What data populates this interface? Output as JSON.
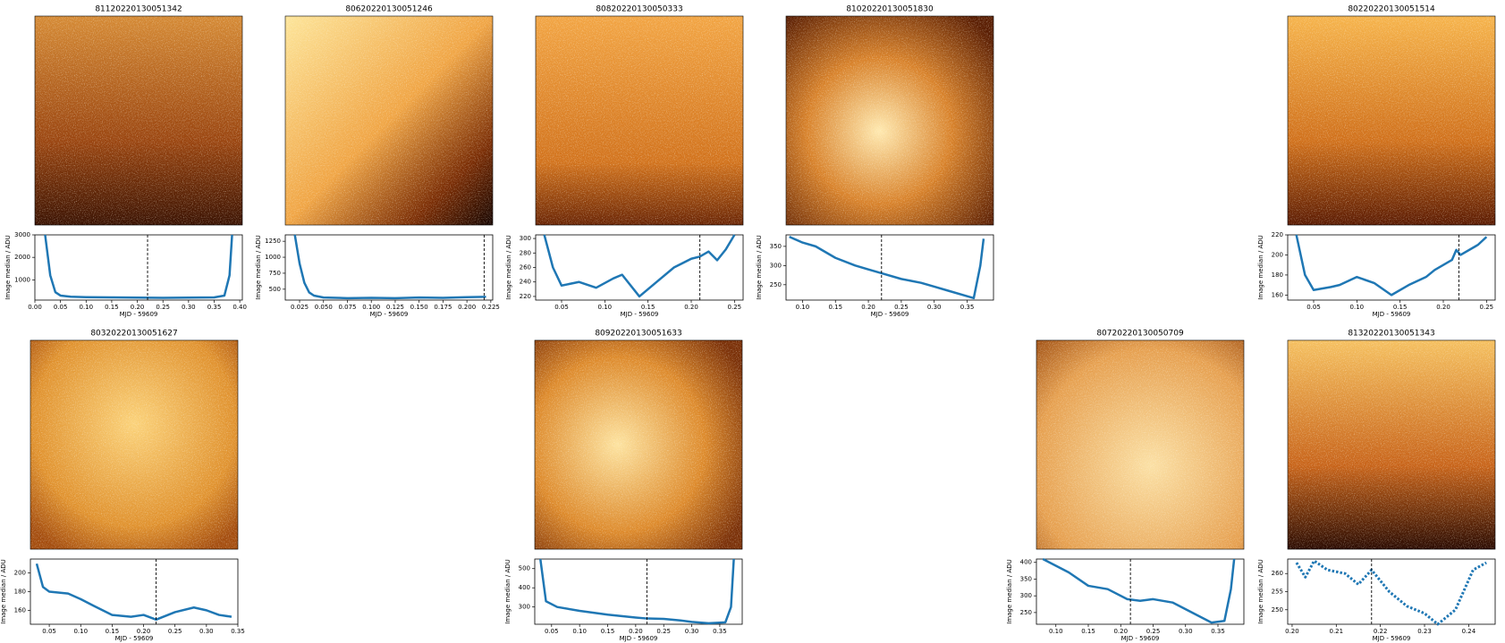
{
  "chart_data": [
    {
      "type": "line",
      "title": "81120220130051342",
      "xlabel": "MJD - 59609",
      "ylabel": "Image median / ADU",
      "color": "#1f77b4",
      "linestyle": "solid",
      "vline": 0.22,
      "x": [
        0.02,
        0.03,
        0.04,
        0.05,
        0.07,
        0.1,
        0.15,
        0.2,
        0.25,
        0.3,
        0.35,
        0.37,
        0.38,
        0.385
      ],
      "values": [
        3000,
        1200,
        450,
        300,
        250,
        230,
        220,
        210,
        200,
        210,
        220,
        300,
        1200,
        3000
      ],
      "xlim": [
        0.0,
        0.405
      ],
      "ylim": [
        100,
        3000
      ],
      "xticks": [
        {
          "value": 0,
          "label": "0.00"
        },
        0.05,
        {
          "value": 0.1,
          "label": "0.10"
        },
        0.15,
        {
          "value": 0.2,
          "label": "0.20"
        },
        0.25,
        {
          "value": 0.3,
          "label": "0.30"
        },
        0.35,
        {
          "value": 0.4,
          "label": "0.40"
        }
      ],
      "yticks": [
        1000,
        2000,
        3000
      ]
    },
    {
      "type": "line",
      "title": "80620220130051246",
      "xlabel": "MJD - 59609",
      "ylabel": "Image median / ADU",
      "color": "#1f77b4",
      "linestyle": "solid",
      "vline": 0.218,
      "x": [
        0.02,
        0.025,
        0.03,
        0.035,
        0.04,
        0.05,
        0.075,
        0.1,
        0.125,
        0.15,
        0.175,
        0.2,
        0.22
      ],
      "values": [
        1350,
        900,
        600,
        450,
        400,
        370,
        360,
        365,
        360,
        370,
        365,
        375,
        380
      ],
      "xlim": [
        0.01,
        0.227
      ],
      "ylim": [
        330,
        1350
      ],
      "xticks": [
        0.025,
        {
          "value": 0.05,
          "label": "0.050"
        },
        0.075,
        {
          "value": 0.1,
          "label": "0.100"
        },
        0.125,
        {
          "value": 0.15,
          "label": "0.150"
        },
        0.175,
        {
          "value": 0.2,
          "label": "0.200"
        },
        0.225
      ],
      "yticks": [
        500,
        750,
        1000,
        1250
      ]
    },
    {
      "type": "line",
      "title": "80820220130050333",
      "xlabel": "MJD - 59609",
      "ylabel": "Image median / ADU",
      "color": "#1f77b4",
      "linestyle": "solid",
      "vline": 0.21,
      "x": [
        0.03,
        0.04,
        0.05,
        0.07,
        0.09,
        0.11,
        0.12,
        0.14,
        0.16,
        0.18,
        0.2,
        0.21,
        0.22,
        0.23,
        0.24,
        0.25
      ],
      "values": [
        305,
        260,
        235,
        240,
        232,
        245,
        250,
        220,
        240,
        260,
        272,
        275,
        282,
        270,
        285,
        305
      ],
      "xlim": [
        0.02,
        0.26
      ],
      "ylim": [
        215,
        305
      ],
      "xticks": [
        0.05,
        {
          "value": 0.1,
          "label": "0.10"
        },
        0.15,
        {
          "value": 0.2,
          "label": "0.20"
        },
        0.25
      ],
      "yticks": [
        220,
        240,
        260,
        280,
        300
      ]
    },
    {
      "type": "line",
      "title": "81020220130051830",
      "xlabel": "MJD - 59609",
      "ylabel": "Image median / ADU",
      "color": "#1f77b4",
      "linestyle": "solid",
      "vline": 0.22,
      "x": [
        0.08,
        0.1,
        0.12,
        0.15,
        0.18,
        0.2,
        0.22,
        0.25,
        0.28,
        0.3,
        0.32,
        0.35,
        0.36,
        0.37,
        0.375
      ],
      "values": [
        375,
        360,
        350,
        320,
        300,
        290,
        280,
        265,
        255,
        245,
        235,
        220,
        215,
        300,
        370
      ],
      "xlim": [
        0.075,
        0.39
      ],
      "ylim": [
        210,
        380
      ],
      "xticks": [
        {
          "value": 0.1,
          "label": "0.10"
        },
        0.15,
        {
          "value": 0.2,
          "label": "0.20"
        },
        0.25,
        {
          "value": 0.3,
          "label": "0.30"
        },
        0.35
      ],
      "yticks": [
        250,
        300,
        350
      ]
    },
    {
      "type": "line",
      "title": "80220220130051514",
      "xlabel": "MJD - 59609",
      "ylabel": "Image median / ADU",
      "color": "#1f77b4",
      "linestyle": "solid",
      "vline": 0.218,
      "x": [
        0.03,
        0.04,
        0.05,
        0.07,
        0.08,
        0.1,
        0.12,
        0.14,
        0.16,
        0.18,
        0.19,
        0.21,
        0.215,
        0.22,
        0.24,
        0.25
      ],
      "values": [
        220,
        180,
        165,
        168,
        170,
        178,
        172,
        160,
        170,
        178,
        185,
        195,
        205,
        200,
        210,
        218
      ],
      "xlim": [
        0.02,
        0.26
      ],
      "ylim": [
        155,
        220
      ],
      "xticks": [
        0.05,
        {
          "value": 0.1,
          "label": "0.10"
        },
        0.15,
        {
          "value": 0.2,
          "label": "0.20"
        },
        0.25
      ],
      "yticks": [
        160,
        180,
        200,
        220
      ]
    },
    {
      "type": "line",
      "title": "80320220130051627",
      "xlabel": "MJD - 59609",
      "ylabel": "Image median / ADU",
      "color": "#1f77b4",
      "linestyle": "solid",
      "vline": 0.22,
      "x": [
        0.03,
        0.04,
        0.05,
        0.08,
        0.1,
        0.12,
        0.15,
        0.18,
        0.2,
        0.22,
        0.25,
        0.28,
        0.3,
        0.32,
        0.34
      ],
      "values": [
        210,
        185,
        180,
        178,
        172,
        165,
        155,
        153,
        155,
        150,
        158,
        163,
        160,
        155,
        153
      ],
      "xlim": [
        0.02,
        0.35
      ],
      "ylim": [
        145,
        215
      ],
      "xticks": [
        0.05,
        {
          "value": 0.1,
          "label": "0.10"
        },
        0.15,
        {
          "value": 0.2,
          "label": "0.20"
        },
        0.25,
        {
          "value": 0.3,
          "label": "0.30"
        },
        0.35
      ],
      "yticks": [
        160,
        180,
        200
      ]
    },
    {
      "type": "line",
      "title": "80920220130051633",
      "xlabel": "MJD - 59609",
      "ylabel": "Image median / ADU",
      "color": "#1f77b4",
      "linestyle": "solid",
      "vline": 0.22,
      "x": [
        0.03,
        0.04,
        0.06,
        0.1,
        0.15,
        0.2,
        0.22,
        0.25,
        0.28,
        0.3,
        0.33,
        0.36,
        0.37,
        0.375
      ],
      "values": [
        550,
        330,
        300,
        280,
        260,
        245,
        240,
        238,
        230,
        222,
        215,
        220,
        300,
        550
      ],
      "xlim": [
        0.02,
        0.39
      ],
      "ylim": [
        210,
        550
      ],
      "xticks": [
        0.05,
        {
          "value": 0.1,
          "label": "0.10"
        },
        0.15,
        {
          "value": 0.2,
          "label": "0.20"
        },
        0.25,
        {
          "value": 0.3,
          "label": "0.30"
        },
        0.35
      ],
      "yticks": [
        300,
        400,
        500
      ]
    },
    {
      "type": "line",
      "title": "80720220130050709",
      "xlabel": "MJD - 59609",
      "ylabel": "Image median / ADU",
      "color": "#1f77b4",
      "linestyle": "solid",
      "vline": 0.215,
      "x": [
        0.08,
        0.1,
        0.12,
        0.15,
        0.18,
        0.21,
        0.23,
        0.25,
        0.28,
        0.31,
        0.34,
        0.36,
        0.37,
        0.375
      ],
      "values": [
        410,
        390,
        370,
        330,
        320,
        290,
        285,
        290,
        280,
        250,
        220,
        225,
        320,
        410
      ],
      "xlim": [
        0.07,
        0.39
      ],
      "ylim": [
        215,
        410
      ],
      "xticks": [
        {
          "value": 0.1,
          "label": "0.10"
        },
        0.15,
        {
          "value": 0.2,
          "label": "0.20"
        },
        0.25,
        {
          "value": 0.3,
          "label": "0.30"
        },
        0.35
      ],
      "yticks": [
        250,
        300,
        350,
        400
      ]
    },
    {
      "type": "line",
      "title": "81320220130051343",
      "xlabel": "MJD - 59609",
      "ylabel": "Image median / ADU",
      "color": "#1f77b4",
      "linestyle": "dotted",
      "vline": 0.218,
      "x": [
        0.201,
        0.203,
        0.205,
        0.208,
        0.212,
        0.215,
        0.218,
        0.222,
        0.226,
        0.23,
        0.233,
        0.237,
        0.241,
        0.244
      ],
      "values": [
        263,
        259,
        263.5,
        261,
        260,
        257,
        261,
        255,
        251,
        249,
        246,
        250,
        261,
        263
      ],
      "xlim": [
        0.199,
        0.246
      ],
      "ylim": [
        246,
        264
      ],
      "xticks": [
        {
          "value": 0.2,
          "label": "0.20"
        },
        0.21,
        0.22,
        0.23,
        0.24
      ],
      "yticks": [
        250,
        255,
        260
      ]
    }
  ]
}
